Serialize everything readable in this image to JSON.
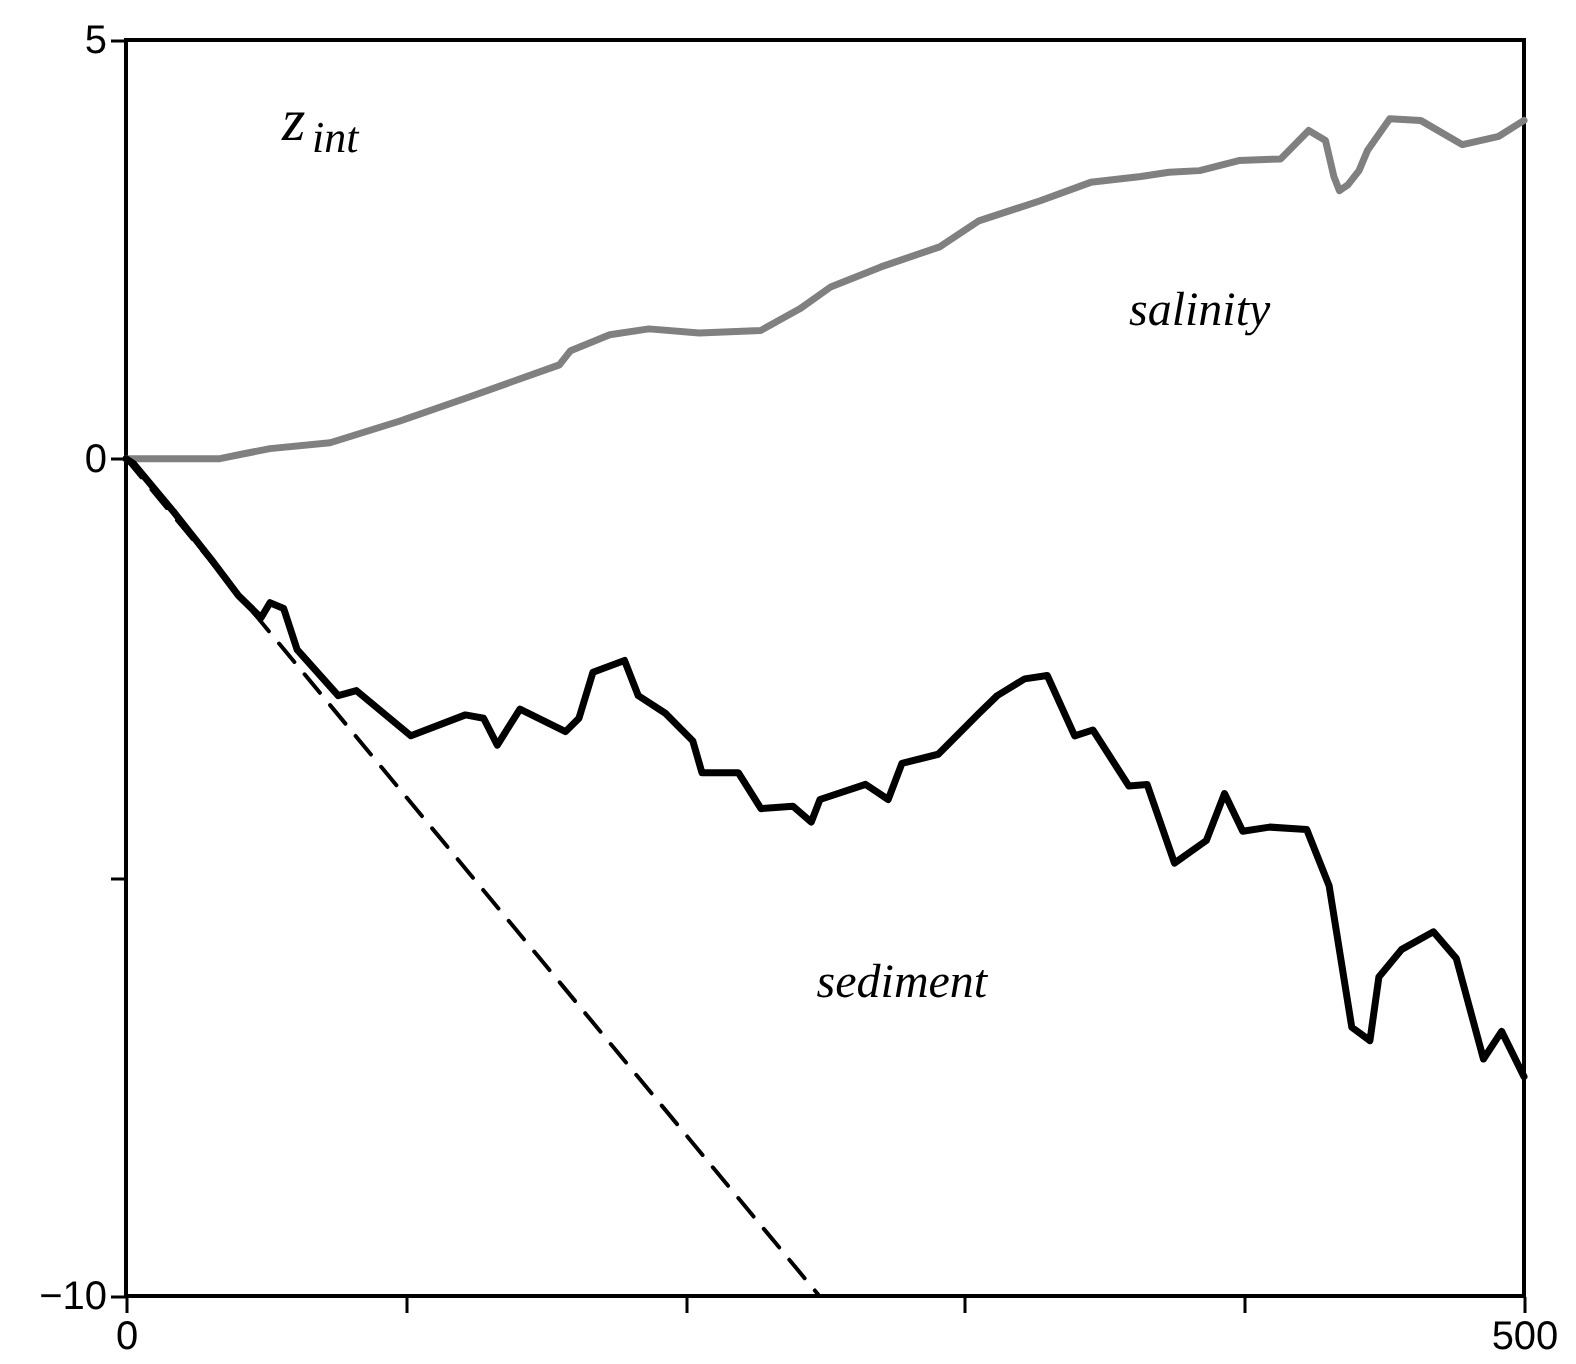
{
  "chart_data": {
    "type": "line",
    "annotations": [
      "z$_{int}$"
    ],
    "xlim": [
      0,
      500
    ],
    "ylim": [
      -10,
      5
    ],
    "xticks": [
      0,
      {
        "value": 100,
        "label": null
      },
      {
        "value": 200,
        "label": null
      },
      {
        "value": 300,
        "label": null
      },
      {
        "value": 400,
        "label": null
      },
      500
    ],
    "yticks": [
      {
        "value": -10,
        "label": "−10"
      },
      {
        "value": -5,
        "label": null
      },
      0,
      5
    ],
    "grid": false,
    "line_style": "solid",
    "marker": "none",
    "series": [
      {
        "name": "salinity",
        "color": "#808080",
        "x": [
          0,
          33.6,
          40.8,
          51.5,
          73,
          98,
          123,
          155,
          159,
          173,
          187,
          205,
          227,
          241,
          252,
          270,
          291,
          305,
          327,
          345,
          363,
          373,
          384,
          398,
          413,
          423,
          429,
          432,
          434,
          437,
          441,
          444,
          452,
          463,
          478,
          491,
          500
        ],
        "values": [
          0,
          0,
          0.05,
          0.12,
          0.19,
          0.45,
          0.74,
          1.12,
          1.29,
          1.48,
          1.55,
          1.5,
          1.53,
          1.79,
          2.05,
          2.29,
          2.53,
          2.84,
          3.08,
          3.3,
          3.37,
          3.42,
          3.44,
          3.56,
          3.58,
          3.92,
          3.8,
          3.37,
          3.2,
          3.27,
          3.44,
          3.68,
          4.06,
          4.04,
          3.75,
          3.85,
          4.04
        ]
      },
      {
        "name": "sediment",
        "color": "#000000",
        "x": [
          0,
          2.7,
          17.4,
          30.4,
          40.1,
          48.3,
          51.5,
          56.4,
          61.2,
          75.9,
          82.4,
          101.9,
          121.4,
          127.9,
          132.8,
          140.9,
          157.2,
          162,
          167,
          178.3,
          183.2,
          192.9,
          202.7,
          206,
          219,
          227.1,
          238.5,
          245.1,
          248.2,
          264.5,
          272.6,
          277.5,
          290.5,
          305.1,
          311.6,
          321.4,
          329.5,
          339.3,
          345.8,
          358.7,
          365.2,
          375,
          386.4,
          392.9,
          399.4,
          409,
          422.3,
          430.3,
          438.4,
          444.9,
          448.1,
          456.3,
          467.6,
          475.8,
          485.5,
          492,
          500
        ],
        "values": [
          0,
          -0.06,
          -0.65,
          -1.2,
          -1.63,
          -1.9,
          -1.72,
          -1.79,
          -2.28,
          -2.83,
          -2.77,
          -3.31,
          -3.06,
          -3.1,
          -3.42,
          -2.99,
          -3.26,
          -3.1,
          -2.55,
          -2.41,
          -2.83,
          -3.04,
          -3.37,
          -3.75,
          -3.75,
          -4.18,
          -4.15,
          -4.34,
          -4.07,
          -3.89,
          -4.07,
          -3.64,
          -3.53,
          -3.04,
          -2.83,
          -2.63,
          -2.59,
          -3.31,
          -3.24,
          -3.91,
          -3.89,
          -4.83,
          -4.56,
          -4.0,
          -4.45,
          -4.4,
          -4.43,
          -5.1,
          -6.79,
          -6.95,
          -6.19,
          -5.86,
          -5.65,
          -5.97,
          -7.17,
          -6.84,
          -7.38
        ]
      },
      {
        "color": "#000000",
        "line_style": "dashed",
        "x": [
          0,
          248
        ],
        "values": [
          0,
          -10
        ]
      }
    ]
  }
}
